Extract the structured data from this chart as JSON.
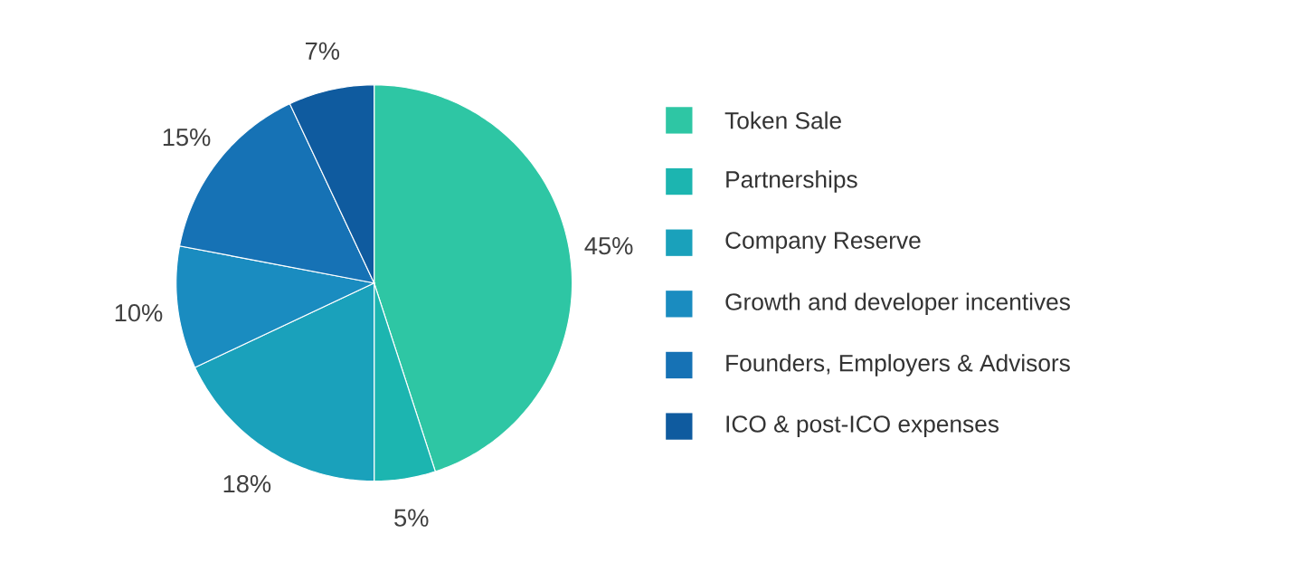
{
  "chart_data": {
    "type": "pie",
    "categories": [
      "Token Sale",
      "Partnerships",
      "Company Reserve",
      "Growth and developer incentives",
      "Founders, Employers & Advisors",
      "ICO & post-ICO expenses"
    ],
    "values": [
      45,
      5,
      18,
      10,
      15,
      7
    ],
    "value_labels": [
      "45%",
      "5%",
      "18%",
      "10%",
      "15%",
      "7%"
    ],
    "colors": [
      "#2ec6a4",
      "#1cb5b0",
      "#1aa1bb",
      "#1a8cc0",
      "#1672b5",
      "#0f5b9f"
    ],
    "legend": "right"
  }
}
